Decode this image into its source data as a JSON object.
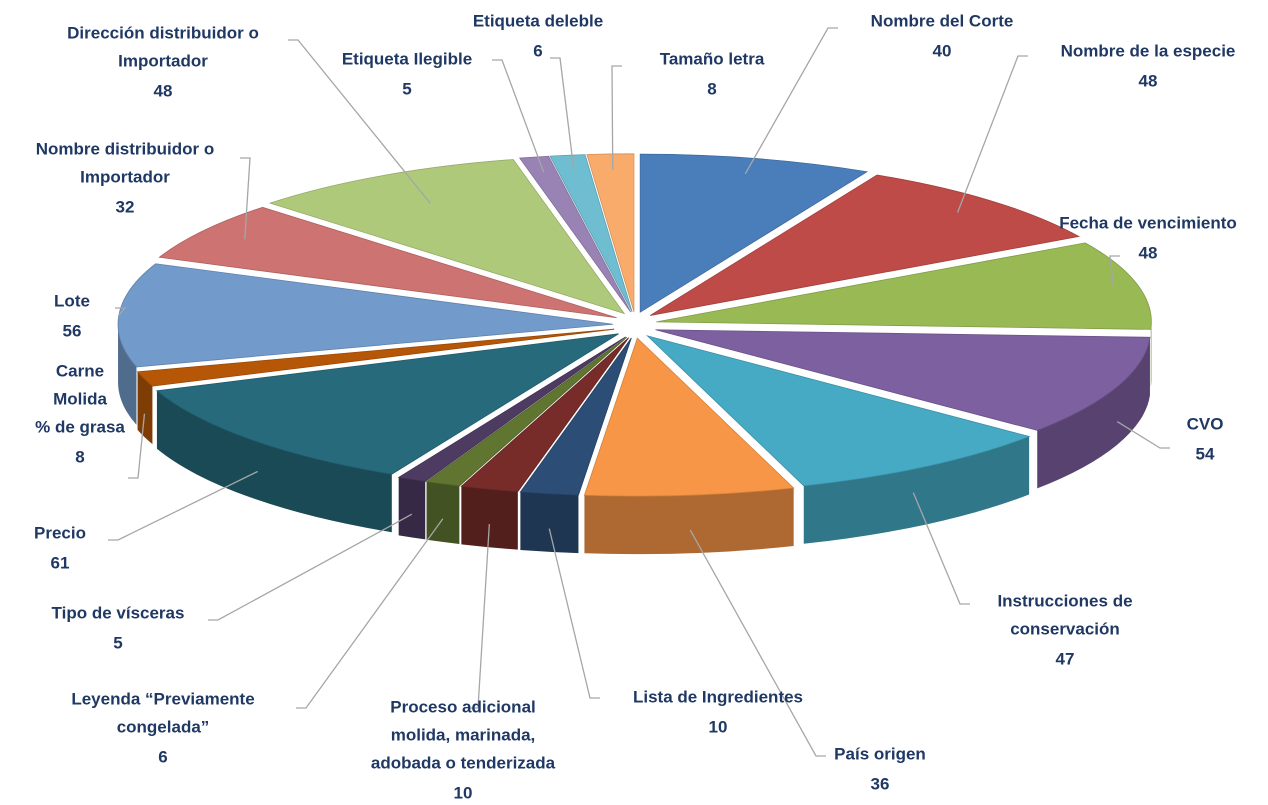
{
  "chart_data": {
    "type": "pie3d",
    "categories": [
      [
        "Nombre del Corte"
      ],
      [
        "Nombre de la especie"
      ],
      [
        "Fecha de vencimiento"
      ],
      [
        "CVO"
      ],
      [
        "Instrucciones de",
        "conservación"
      ],
      [
        "País origen"
      ],
      [
        "Lista de Ingredientes"
      ],
      [
        "Proceso adicional",
        "molida, marinada,",
        "adobada o tenderizada"
      ],
      [
        "Leyenda “Previamente",
        "congelada”"
      ],
      [
        "Tipo de vísceras"
      ],
      [
        "Precio"
      ],
      [
        "Carne",
        "Molida",
        "% de grasa"
      ],
      [
        "Lote"
      ],
      [
        "Nombre distribuidor o",
        "Importador"
      ],
      [
        "Dirección distribuidor o",
        "Importador"
      ],
      [
        "Etiqueta Ilegible"
      ],
      [
        "Etiqueta deleble"
      ],
      [
        "Tamaño  letra"
      ]
    ],
    "values": [
      40,
      48,
      48,
      54,
      47,
      36,
      10,
      10,
      6,
      5,
      61,
      8,
      56,
      32,
      48,
      5,
      6,
      8
    ],
    "colors": [
      "#4a7ebb",
      "#be4b48",
      "#98b954",
      "#7d60a0",
      "#46aac5",
      "#f79646",
      "#2c4d75",
      "#772c2a",
      "#5f7530",
      "#4d3b62",
      "#276a7c",
      "#b65708",
      "#729aca",
      "#cd7371",
      "#afc97a",
      "#9983b5",
      "#6fbdd1",
      "#f9ab6b"
    ]
  }
}
